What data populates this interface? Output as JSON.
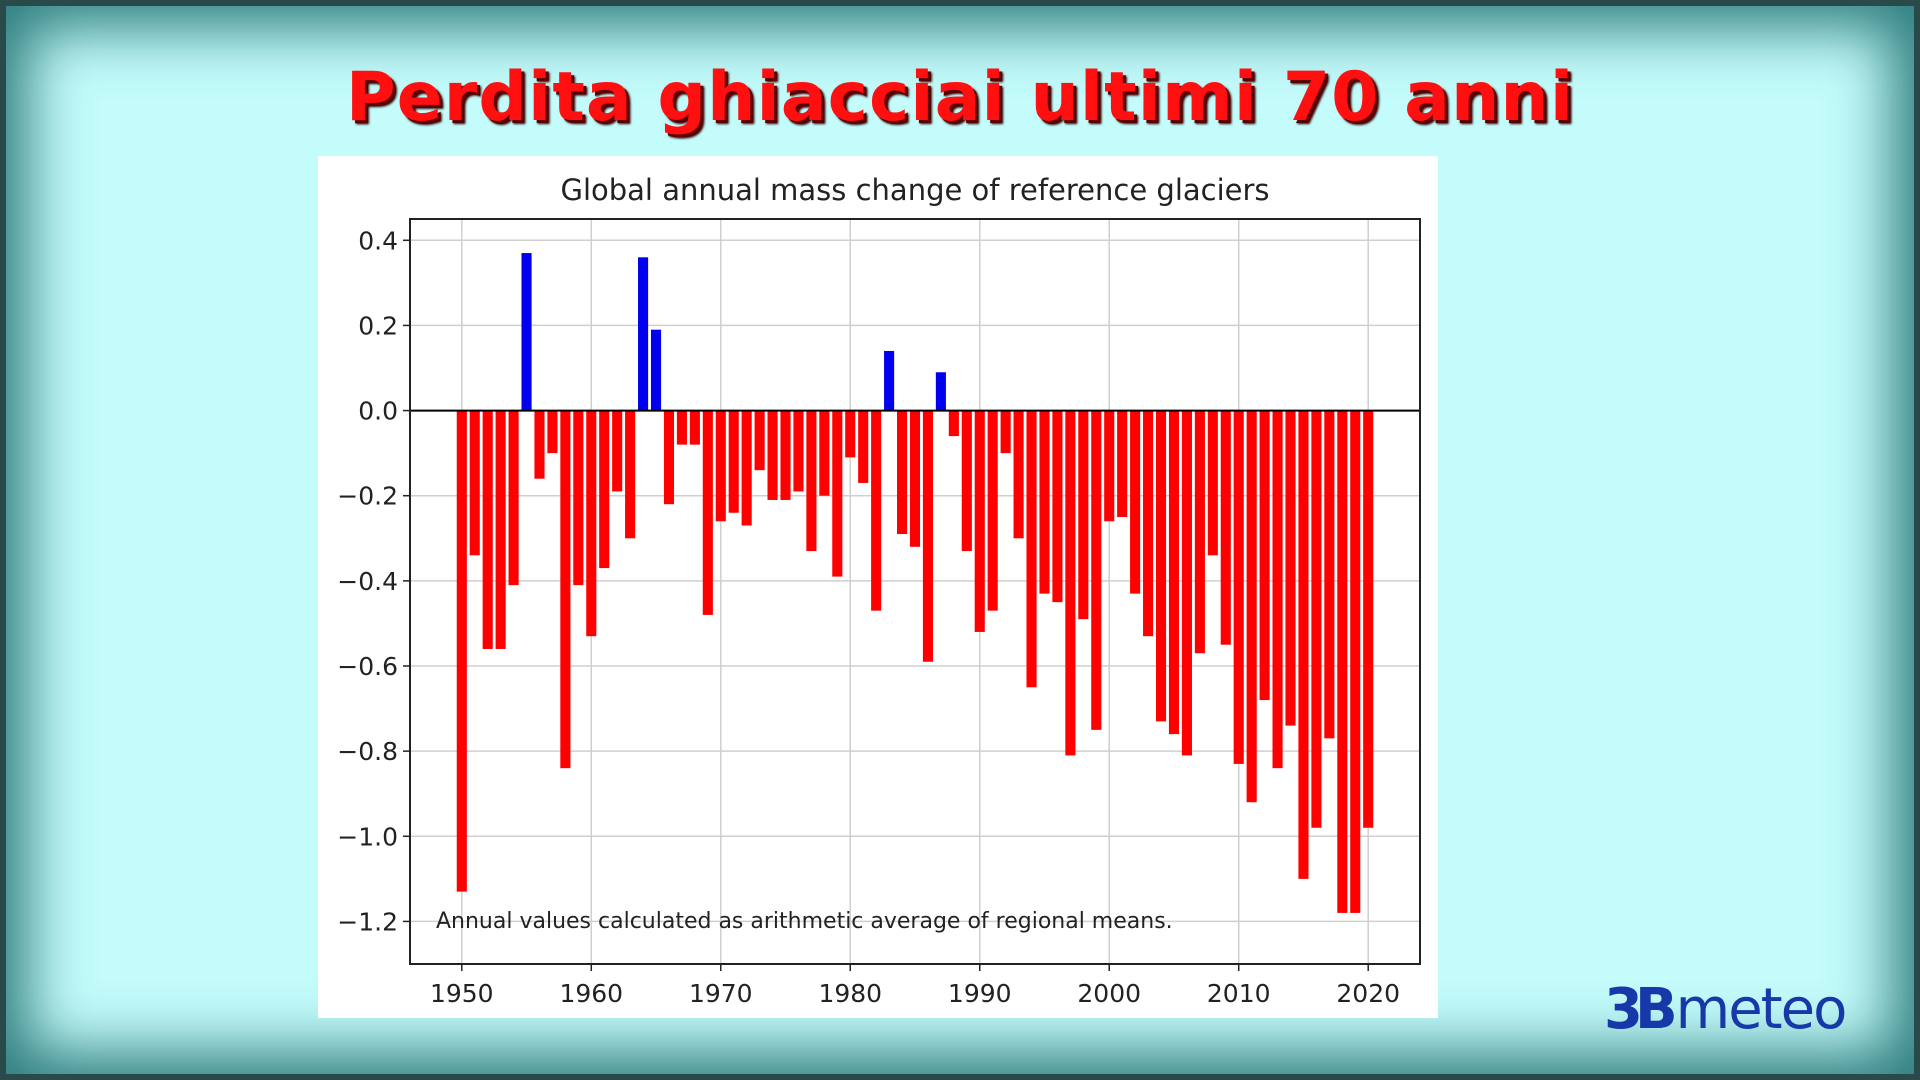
{
  "slide": {
    "title": "Perdita ghiacciai ultimi 70 anni",
    "logo_mark": "3B",
    "logo_text": "meteo"
  },
  "colors": {
    "positive": "#0000ee",
    "negative": "#ff0000",
    "background": "#c4fbfb",
    "title": "#ff0f0f",
    "logo": "#1638a8"
  },
  "chart_data": {
    "type": "bar",
    "title": "Global annual mass change of reference glaciers",
    "annotation": "Annual values calculated as arithmetic average of regional means.",
    "xlabel": "",
    "ylabel": "",
    "xlim": [
      1946,
      2024
    ],
    "ylim": [
      -1.3,
      0.45
    ],
    "xticks": [
      "1950",
      "1960",
      "1970",
      "1980",
      "1990",
      "2000",
      "2010",
      "2020"
    ],
    "yticks": [
      "0.4",
      "0.2",
      "0.0",
      "−0.2",
      "−0.4",
      "−0.6",
      "−0.8",
      "−1.0",
      "−1.2"
    ],
    "grid": true,
    "years": [
      1950,
      1951,
      1952,
      1953,
      1954,
      1955,
      1956,
      1957,
      1958,
      1959,
      1960,
      1961,
      1962,
      1963,
      1964,
      1965,
      1966,
      1967,
      1968,
      1969,
      1970,
      1971,
      1972,
      1973,
      1974,
      1975,
      1976,
      1977,
      1978,
      1979,
      1980,
      1981,
      1982,
      1983,
      1984,
      1985,
      1986,
      1987,
      1988,
      1989,
      1990,
      1991,
      1992,
      1993,
      1994,
      1995,
      1996,
      1997,
      1998,
      1999,
      2000,
      2001,
      2002,
      2003,
      2004,
      2005,
      2006,
      2007,
      2008,
      2009,
      2010,
      2011,
      2012,
      2013,
      2014,
      2015,
      2016,
      2017,
      2018,
      2019,
      2020
    ],
    "values": [
      -1.13,
      -0.34,
      -0.56,
      -0.56,
      -0.41,
      0.37,
      -0.16,
      -0.1,
      -0.84,
      -0.41,
      -0.53,
      -0.37,
      -0.19,
      -0.3,
      0.36,
      0.19,
      -0.22,
      -0.08,
      -0.08,
      -0.48,
      -0.26,
      -0.24,
      -0.27,
      -0.14,
      -0.21,
      -0.21,
      -0.19,
      -0.33,
      -0.2,
      -0.39,
      -0.11,
      -0.17,
      -0.47,
      0.14,
      -0.29,
      -0.32,
      -0.59,
      0.09,
      -0.06,
      -0.33,
      -0.52,
      -0.47,
      -0.1,
      -0.3,
      -0.65,
      -0.43,
      -0.45,
      -0.81,
      -0.49,
      -0.75,
      -0.26,
      -0.25,
      -0.43,
      -0.53,
      -0.73,
      -0.76,
      -0.81,
      -0.57,
      -0.34,
      -0.55,
      -0.83,
      -0.92,
      -0.68,
      -0.84,
      -0.74,
      -1.1,
      -0.98,
      -0.77,
      -1.18,
      -1.18,
      -0.98
    ]
  }
}
